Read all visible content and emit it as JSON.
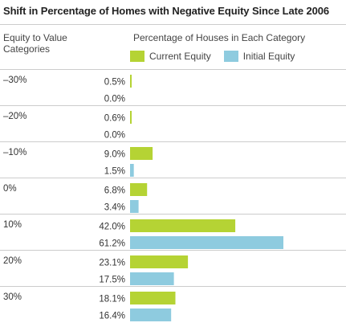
{
  "chart_data": {
    "type": "bar",
    "title": "Shift in Percentage of Homes with Negative Equity Since Late 2006",
    "category_label": "Equity to Value Categories",
    "value_axis_label": "Percentage of Houses in Each Category",
    "categories": [
      "–30%",
      "–20%",
      "–10%",
      "0%",
      "10%",
      "20%",
      "30%"
    ],
    "series": [
      {
        "name": "Current Equity",
        "color": "#b5d334",
        "values": [
          0.5,
          0.6,
          9.0,
          6.8,
          42.0,
          23.1,
          18.1
        ],
        "labels": [
          "0.5%",
          "0.6%",
          "9.0%",
          "6.8%",
          "42.0%",
          "23.1%",
          "18.1%"
        ]
      },
      {
        "name": "Initial Equity",
        "color": "#8ecbdf",
        "values": [
          0.0,
          0.0,
          1.5,
          3.4,
          61.2,
          17.5,
          16.4
        ],
        "labels": [
          "0.0%",
          "0.0%",
          "1.5%",
          "3.4%",
          "61.2%",
          "17.5%",
          "16.4%"
        ]
      }
    ],
    "legend_position": "top",
    "orientation": "horizontal",
    "grid": false
  }
}
